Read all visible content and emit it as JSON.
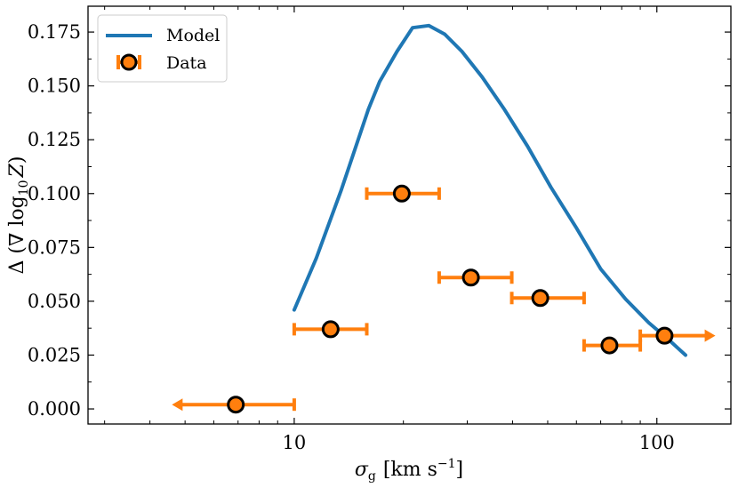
{
  "chart_data": {
    "type": "line",
    "xscale": "log",
    "xlim": [
      2.7,
      160
    ],
    "ylim": [
      -0.007,
      0.187
    ],
    "grid": false,
    "legend_position": "top-left",
    "xlabel": "σ_g [km s⁻¹]",
    "ylabel": "Δ (∇ log₁₀ Z)",
    "x_ticks": [
      10,
      100
    ],
    "x_tick_labels": [
      "10",
      "100"
    ],
    "y_ticks": [
      0.0,
      0.025,
      0.05,
      0.075,
      0.1,
      0.125,
      0.15,
      0.175
    ],
    "y_tick_labels": [
      "0.000",
      "0.025",
      "0.050",
      "0.075",
      "0.100",
      "0.125",
      "0.150",
      "0.175"
    ],
    "series": [
      {
        "name": "Model",
        "kind": "line",
        "color": "#1f77b4",
        "x": [
          10,
          11.5,
          13.5,
          16,
          17.2,
          19.2,
          21.2,
          23.5,
          26,
          29,
          33,
          38,
          44,
          51,
          60,
          70,
          82,
          95,
          108,
          120
        ],
        "y": [
          0.046,
          0.07,
          0.102,
          0.139,
          0.152,
          0.166,
          0.177,
          0.178,
          0.174,
          0.166,
          0.154,
          0.139,
          0.122,
          0.103,
          0.084,
          0.065,
          0.051,
          0.04,
          0.032,
          0.025
        ]
      },
      {
        "name": "Data",
        "kind": "errorbar",
        "color": "#ff7f0e",
        "x": [
          6.9,
          12.6,
          19.8,
          30.7,
          47.7,
          74,
          105
        ],
        "y": [
          0.002,
          0.037,
          0.1,
          0.061,
          0.0515,
          0.0295,
          0.034
        ],
        "x_err_low": [
          4.6,
          10,
          15.85,
          25.1,
          39.8,
          63,
          90
        ],
        "x_err_high": [
          10,
          15.85,
          25.1,
          39.8,
          63,
          90,
          145
        ],
        "arrow": [
          "left",
          "none",
          "none",
          "none",
          "none",
          "none",
          "right"
        ]
      }
    ]
  }
}
